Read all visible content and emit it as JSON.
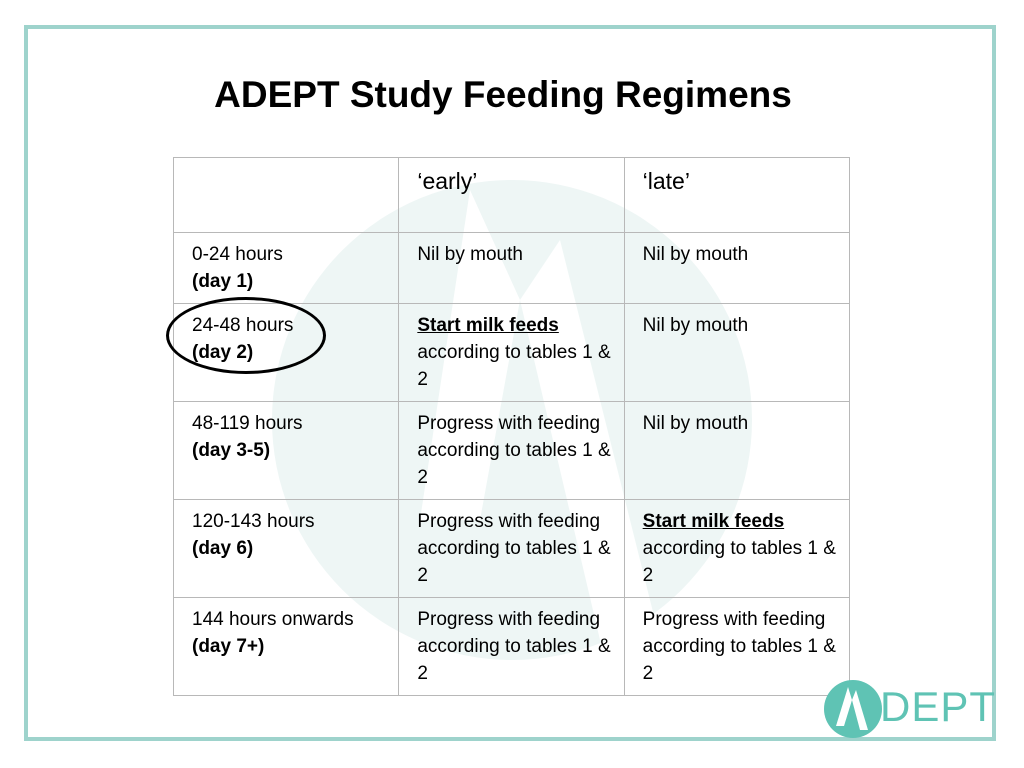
{
  "slide": {
    "title": "ADEPT Study Feeding Regimens",
    "header": {
      "blank": "",
      "early": "‘early’",
      "late": "‘late’"
    },
    "rows": [
      {
        "time": "0-24 hours",
        "day": "(day 1)",
        "early": "Nil by mouth",
        "late": "Nil by mouth"
      },
      {
        "time": "24-48 hours",
        "day": "(day 2)",
        "early_start": "Start milk feeds",
        "early_rest": "according to tables 1 & 2",
        "late": "Nil by mouth"
      },
      {
        "time": "48-119 hours",
        "day": "(day 3-5)",
        "early": "Progress with feeding according to tables 1 & 2",
        "late": "Nil by mouth"
      },
      {
        "time": "120-143 hours",
        "day": "(day 6)",
        "early": "Progress with feeding according to tables 1 & 2",
        "late_start": "Start milk feeds",
        "late_rest": "according to tables 1 & 2"
      },
      {
        "time": "144 hours onwards",
        "day": "(day 7+)",
        "early": "Progress with feeding according to tables 1 & 2",
        "late": "Progress with feeding according to tables 1 & 2"
      }
    ],
    "logo": {
      "text": "DEPT",
      "icon": "adept-a-logo-icon"
    },
    "colors": {
      "frame": "#9ed3cc",
      "brand": "#5fc3b4"
    }
  }
}
